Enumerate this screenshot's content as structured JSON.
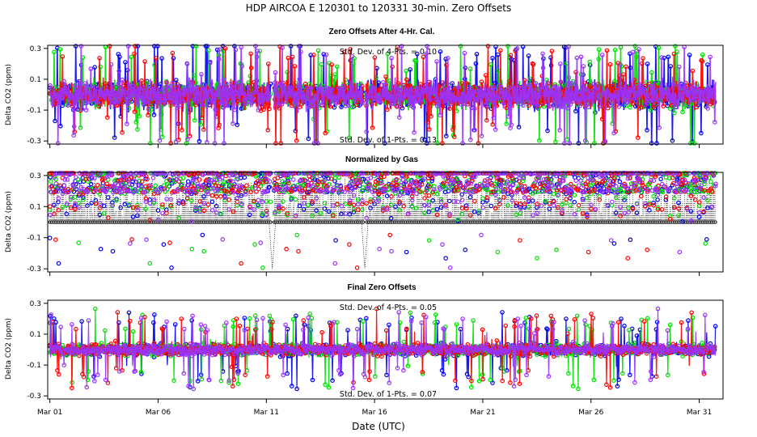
{
  "chart_data": {
    "type": "scatter",
    "title": "HDP    AIRCOA E    120301 to 120331    30-min. Zero Offsets",
    "xlabel": "Date (UTC)",
    "x_ticks": [
      "Mar 01",
      "Mar 06",
      "Mar 11",
      "Mar 16",
      "Mar 21",
      "Mar 26",
      "Mar 31"
    ],
    "x_tick_days": [
      1,
      6,
      11,
      16,
      21,
      26,
      31
    ],
    "xlim": [
      0.9,
      32.1
    ],
    "series_colors": [
      "#0000ee",
      "#00dd00",
      "#ff0000",
      "#9933ff"
    ],
    "panels": [
      {
        "title": "Zero Offsets After 4-Hr. Cal.",
        "ylabel": "Delta CO2 (ppm)",
        "ylim": [
          -0.32,
          0.32
        ],
        "yticks": [
          "0.3",
          "0.1",
          "-0.1",
          "-0.3"
        ],
        "ytick_values": [
          0.3,
          0.1,
          -0.1,
          -0.3
        ],
        "annotation_top": "Std. Dev. of 4-Pts. = 0.10",
        "annotation_bottom": "Std. Dev. of 1-Pts. = 0.13",
        "base": 0.0,
        "spread": 0.09,
        "spike": 0.32,
        "dotted_black": false,
        "gaps": [
          [
            11.2,
            11.35
          ],
          [
            15.5,
            15.6
          ]
        ]
      },
      {
        "title": "Normalized by Gas",
        "ylabel": "Delta CO2 (ppm)",
        "ylim": [
          -0.32,
          0.32
        ],
        "yticks": [
          "0.3",
          "0.1",
          "-0.1",
          "-0.3"
        ],
        "ytick_values": [
          0.3,
          0.1,
          -0.1,
          -0.3
        ],
        "annotation_top": "",
        "annotation_bottom": "",
        "base": 0.12,
        "spread": 0.1,
        "spike": 0.32,
        "dotted_black": true,
        "black_level": 0.0,
        "gaps": [
          [
            11.2,
            11.35
          ],
          [
            15.5,
            15.6
          ]
        ]
      },
      {
        "title": "Final Zero Offsets",
        "ylabel": "Delta CO2 (ppm)",
        "ylim": [
          -0.32,
          0.32
        ],
        "yticks": [
          "0.3",
          "0.1",
          "-0.1",
          "-0.3"
        ],
        "ytick_values": [
          0.3,
          0.1,
          -0.1,
          -0.3
        ],
        "annotation_top": "Std. Dev. of 4-Pts. = 0.05",
        "annotation_bottom": "Std. Dev. of 1-Pts. = 0.07",
        "base": 0.0,
        "spread": 0.04,
        "spike": 0.22,
        "dotted_black": false,
        "gaps": []
      }
    ]
  }
}
